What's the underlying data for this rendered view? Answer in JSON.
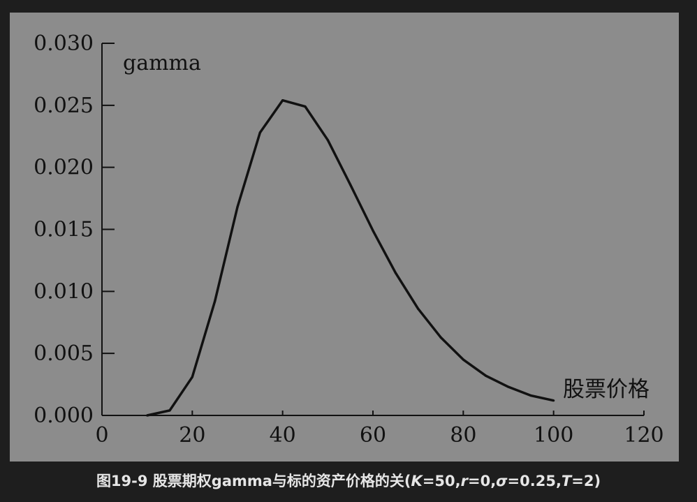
{
  "chart_data": {
    "type": "line",
    "ylabel": "gamma",
    "xlabel": "股票价格",
    "x": [
      10,
      15,
      20,
      25,
      30,
      35,
      40,
      45,
      50,
      55,
      60,
      65,
      70,
      75,
      80,
      85,
      90,
      95,
      100
    ],
    "series": [
      {
        "values": [
          0.0,
          0.0004,
          0.0031,
          0.0092,
          0.0168,
          0.0228,
          0.0254,
          0.0249,
          0.0222,
          0.0186,
          0.0149,
          0.0115,
          0.0086,
          0.0063,
          0.0045,
          0.0032,
          0.0023,
          0.0016,
          0.0012
        ]
      }
    ],
    "xlim": [
      0,
      120
    ],
    "ylim": [
      0,
      0.03
    ],
    "xticks": [
      "0",
      "20",
      "40",
      "60",
      "80",
      "100",
      "120"
    ],
    "yticks": [
      "0.000",
      "0.005",
      "0.010",
      "0.015",
      "0.020",
      "0.025",
      "0.030"
    ],
    "grid": false,
    "colors": {
      "line": "#111111",
      "axis": "#111111",
      "background": "#8c8c8c"
    }
  },
  "caption": {
    "prefix": "图19-9 股票期权gamma与标的资产价格的关(",
    "K": "K",
    "K_val": "=50,",
    "r": "r",
    "r_val": "=0,",
    "sigma": "σ",
    "sigma_val": "=0.25,",
    "T": "T",
    "T_val": "=2)"
  }
}
